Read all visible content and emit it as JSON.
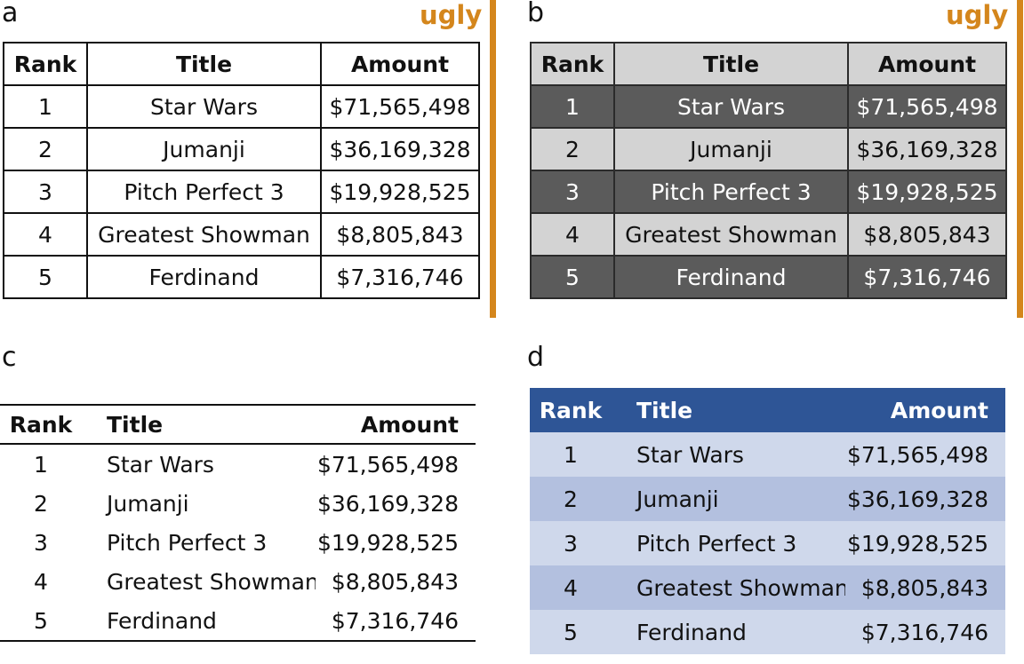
{
  "panels": {
    "a": {
      "letter": "a",
      "tag": "ugly"
    },
    "b": {
      "letter": "b",
      "tag": "ugly"
    },
    "c": {
      "letter": "c"
    },
    "d": {
      "letter": "d"
    }
  },
  "colors": {
    "ugly_tag": "#d4861c",
    "b_dark_row": "#5b5b5b",
    "b_light_row": "#d3d3d3",
    "d_header": "#2e5596",
    "d_light_row": "#cfd8eb",
    "d_mid_row": "#b3c0df"
  },
  "headers": {
    "rank": "Rank",
    "title": "Title",
    "amount": "Amount"
  },
  "rows": [
    {
      "rank": "1",
      "title": "Star Wars",
      "amount": "$71,565,498"
    },
    {
      "rank": "2",
      "title": "Jumanji",
      "amount": "$36,169,328"
    },
    {
      "rank": "3",
      "title": "Pitch Perfect 3",
      "amount": "$19,928,525"
    },
    {
      "rank": "4",
      "title": "Greatest Showman",
      "amount": "$8,805,843"
    },
    {
      "rank": "5",
      "title": "Ferdinand",
      "amount": "$7,316,746"
    }
  ]
}
